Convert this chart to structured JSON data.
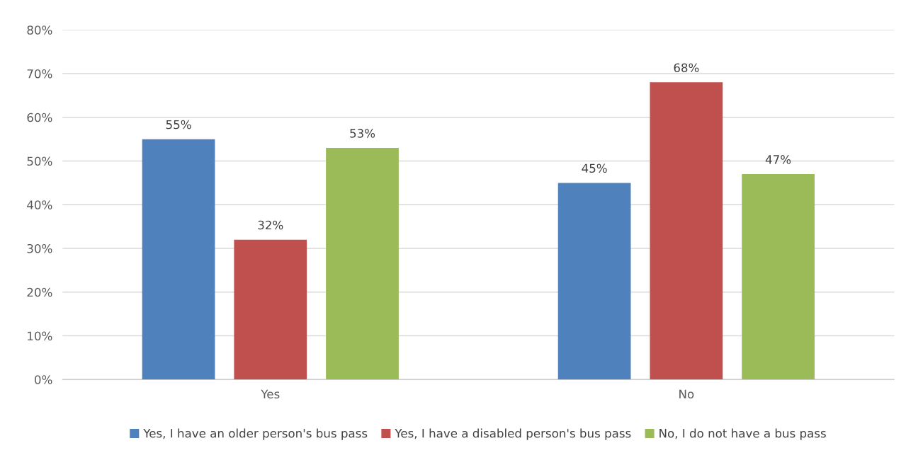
{
  "chart_data": {
    "type": "bar",
    "categories": [
      "Yes",
      "No"
    ],
    "series": [
      {
        "name": "Yes, I have an older person's bus pass",
        "color": "#4f81bd",
        "values": [
          55,
          45
        ],
        "value_labels": [
          "55%",
          "45%"
        ]
      },
      {
        "name": "Yes, I have a disabled person's bus pass",
        "color": "#c0504d",
        "values": [
          32,
          68
        ],
        "value_labels": [
          "32%",
          "68%"
        ]
      },
      {
        "name": "No, I do not have a bus pass",
        "color": "#9bbb59",
        "values": [
          53,
          47
        ],
        "value_labels": [
          "53%",
          "47%"
        ]
      }
    ],
    "ylim": [
      0,
      80
    ],
    "yticks": [
      {
        "value": 0,
        "label": "0%"
      },
      {
        "value": 10,
        "label": "10%"
      },
      {
        "value": 20,
        "label": "20%"
      },
      {
        "value": 30,
        "label": "30%"
      },
      {
        "value": 40,
        "label": "40%"
      },
      {
        "value": 50,
        "label": "50%"
      },
      {
        "value": 60,
        "label": "60%"
      },
      {
        "value": 70,
        "label": "70%"
      },
      {
        "value": 80,
        "label": "80%"
      }
    ],
    "grid": "y",
    "legend": "bottom"
  }
}
